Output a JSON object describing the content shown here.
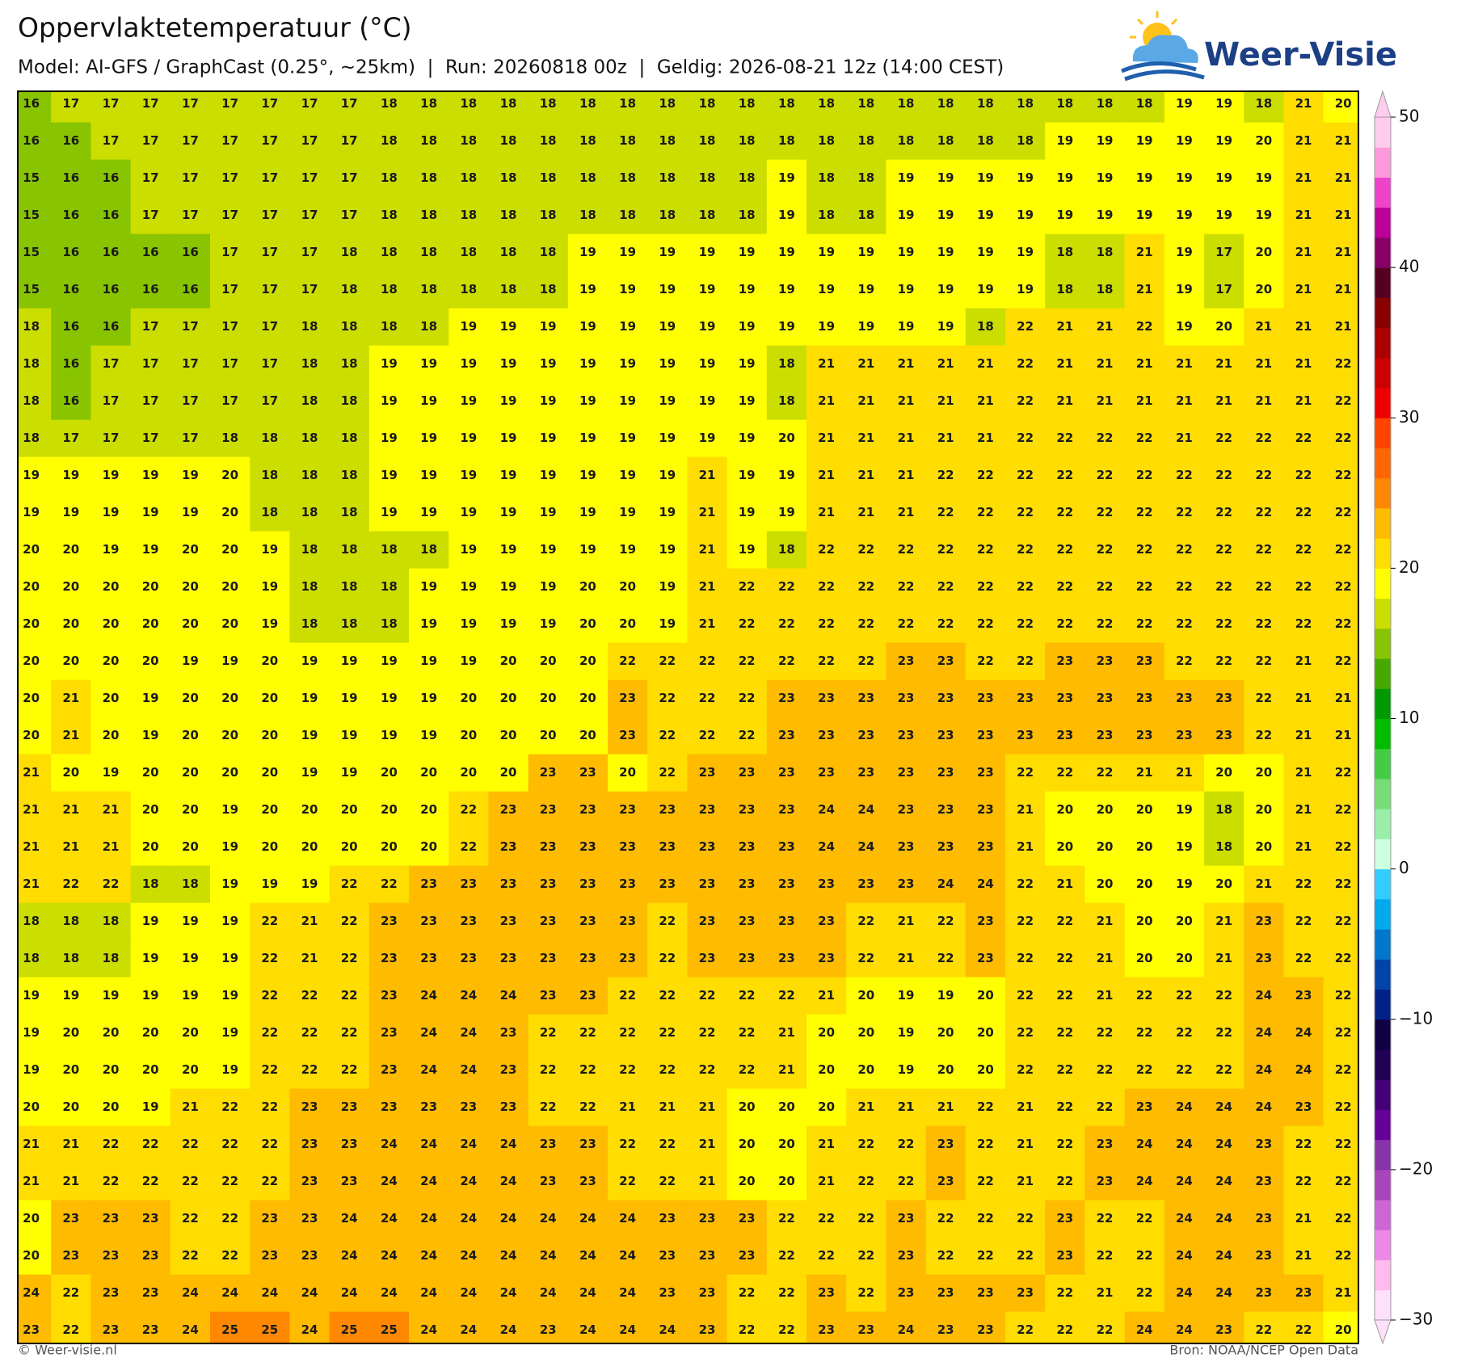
{
  "header": {
    "title": "Oppervlaktetemperatuur (°C)",
    "subtitle": "Model: AI-GFS / GraphCast (0.25°, ~25km)  |  Run: 20260818 00z  |  Geldig: 2026-08-21 12z (14:00 CEST)"
  },
  "logo": {
    "text": "Weer-Visie"
  },
  "map": {
    "values": [
      [
        16,
        17,
        17,
        17,
        17,
        17,
        17,
        17,
        17,
        18,
        18,
        18,
        18,
        18,
        18,
        18,
        18,
        18,
        18,
        18,
        18,
        18,
        18,
        18,
        18,
        18,
        18,
        18,
        18,
        19,
        19,
        18,
        21,
        20
      ],
      [
        16,
        16,
        17,
        17,
        17,
        17,
        17,
        17,
        17,
        18,
        18,
        18,
        18,
        18,
        18,
        18,
        18,
        18,
        18,
        18,
        18,
        18,
        18,
        18,
        18,
        18,
        19,
        19,
        19,
        19,
        19,
        20,
        21,
        21
      ],
      [
        15,
        16,
        16,
        17,
        17,
        17,
        17,
        17,
        17,
        18,
        18,
        18,
        18,
        18,
        18,
        18,
        18,
        18,
        18,
        19,
        18,
        18,
        19,
        19,
        19,
        19,
        19,
        19,
        19,
        19,
        19,
        19,
        21,
        21
      ],
      [
        15,
        16,
        16,
        17,
        17,
        17,
        17,
        17,
        17,
        18,
        18,
        18,
        18,
        18,
        18,
        18,
        18,
        18,
        18,
        19,
        18,
        18,
        19,
        19,
        19,
        19,
        19,
        19,
        19,
        19,
        19,
        19,
        21,
        21
      ],
      [
        15,
        16,
        16,
        16,
        16,
        17,
        17,
        17,
        18,
        18,
        18,
        18,
        18,
        18,
        19,
        19,
        19,
        19,
        19,
        19,
        19,
        19,
        19,
        19,
        19,
        19,
        18,
        18,
        21,
        19,
        17,
        20,
        21,
        21
      ],
      [
        15,
        16,
        16,
        16,
        16,
        17,
        17,
        17,
        18,
        18,
        18,
        18,
        18,
        18,
        19,
        19,
        19,
        19,
        19,
        19,
        19,
        19,
        19,
        19,
        19,
        19,
        18,
        18,
        21,
        19,
        17,
        20,
        21,
        21
      ],
      [
        18,
        16,
        16,
        17,
        17,
        17,
        17,
        18,
        18,
        18,
        18,
        19,
        19,
        19,
        19,
        19,
        19,
        19,
        19,
        19,
        19,
        19,
        19,
        19,
        18,
        22,
        21,
        21,
        22,
        19,
        20,
        21,
        21,
        21
      ],
      [
        18,
        16,
        17,
        17,
        17,
        17,
        17,
        18,
        18,
        19,
        19,
        19,
        19,
        19,
        19,
        19,
        19,
        19,
        19,
        18,
        21,
        21,
        21,
        21,
        21,
        22,
        21,
        21,
        21,
        21,
        21,
        21,
        21,
        22
      ],
      [
        18,
        16,
        17,
        17,
        17,
        17,
        17,
        18,
        18,
        19,
        19,
        19,
        19,
        19,
        19,
        19,
        19,
        19,
        19,
        18,
        21,
        21,
        21,
        21,
        21,
        22,
        21,
        21,
        21,
        21,
        21,
        21,
        21,
        22
      ],
      [
        18,
        17,
        17,
        17,
        17,
        18,
        18,
        18,
        18,
        19,
        19,
        19,
        19,
        19,
        19,
        19,
        19,
        19,
        19,
        20,
        21,
        21,
        21,
        21,
        21,
        22,
        22,
        22,
        22,
        21,
        22,
        22,
        22,
        22
      ],
      [
        19,
        19,
        19,
        19,
        19,
        20,
        18,
        18,
        18,
        19,
        19,
        19,
        19,
        19,
        19,
        19,
        19,
        21,
        19,
        19,
        21,
        21,
        21,
        22,
        22,
        22,
        22,
        22,
        22,
        22,
        22,
        22,
        22,
        22
      ],
      [
        19,
        19,
        19,
        19,
        19,
        20,
        18,
        18,
        18,
        19,
        19,
        19,
        19,
        19,
        19,
        19,
        19,
        21,
        19,
        19,
        21,
        21,
        21,
        22,
        22,
        22,
        22,
        22,
        22,
        22,
        22,
        22,
        22,
        22
      ],
      [
        20,
        20,
        19,
        19,
        20,
        20,
        19,
        18,
        18,
        18,
        18,
        19,
        19,
        19,
        19,
        19,
        19,
        21,
        19,
        18,
        22,
        22,
        22,
        22,
        22,
        22,
        22,
        22,
        22,
        22,
        22,
        22,
        22,
        22
      ],
      [
        20,
        20,
        20,
        20,
        20,
        20,
        19,
        18,
        18,
        18,
        19,
        19,
        19,
        19,
        20,
        20,
        19,
        21,
        22,
        22,
        22,
        22,
        22,
        22,
        22,
        22,
        22,
        22,
        22,
        22,
        22,
        22,
        22,
        22
      ],
      [
        20,
        20,
        20,
        20,
        20,
        20,
        19,
        18,
        18,
        18,
        19,
        19,
        19,
        19,
        20,
        20,
        19,
        21,
        22,
        22,
        22,
        22,
        22,
        22,
        22,
        22,
        22,
        22,
        22,
        22,
        22,
        22,
        22,
        22
      ],
      [
        20,
        20,
        20,
        20,
        19,
        19,
        20,
        19,
        19,
        19,
        19,
        19,
        20,
        20,
        20,
        22,
        22,
        22,
        22,
        22,
        22,
        22,
        23,
        23,
        22,
        22,
        23,
        23,
        23,
        22,
        22,
        22,
        21,
        22
      ],
      [
        20,
        21,
        20,
        19,
        20,
        20,
        20,
        19,
        19,
        19,
        19,
        20,
        20,
        20,
        20,
        23,
        22,
        22,
        22,
        23,
        23,
        23,
        23,
        23,
        23,
        23,
        23,
        23,
        23,
        23,
        23,
        22,
        21,
        21
      ],
      [
        20,
        21,
        20,
        19,
        20,
        20,
        20,
        19,
        19,
        19,
        19,
        20,
        20,
        20,
        20,
        23,
        22,
        22,
        22,
        23,
        23,
        23,
        23,
        23,
        23,
        23,
        23,
        23,
        23,
        23,
        23,
        22,
        21,
        21
      ],
      [
        21,
        20,
        19,
        20,
        20,
        20,
        20,
        19,
        19,
        20,
        20,
        20,
        20,
        23,
        23,
        20,
        22,
        23,
        23,
        23,
        23,
        23,
        23,
        23,
        23,
        22,
        22,
        22,
        21,
        21,
        20,
        20,
        21,
        22
      ],
      [
        21,
        21,
        21,
        20,
        20,
        19,
        20,
        20,
        20,
        20,
        20,
        22,
        23,
        23,
        23,
        23,
        23,
        23,
        23,
        23,
        24,
        24,
        23,
        23,
        23,
        21,
        20,
        20,
        20,
        19,
        18,
        20,
        21,
        22
      ],
      [
        21,
        21,
        21,
        20,
        20,
        19,
        20,
        20,
        20,
        20,
        20,
        22,
        23,
        23,
        23,
        23,
        23,
        23,
        23,
        23,
        24,
        24,
        23,
        23,
        23,
        21,
        20,
        20,
        20,
        19,
        18,
        20,
        21,
        22
      ],
      [
        21,
        22,
        22,
        18,
        18,
        19,
        19,
        19,
        22,
        22,
        23,
        23,
        23,
        23,
        23,
        23,
        23,
        23,
        23,
        23,
        23,
        23,
        23,
        24,
        24,
        22,
        21,
        20,
        20,
        19,
        20,
        21,
        22,
        22
      ],
      [
        18,
        18,
        18,
        19,
        19,
        19,
        22,
        21,
        22,
        23,
        23,
        23,
        23,
        23,
        23,
        23,
        22,
        23,
        23,
        23,
        23,
        22,
        21,
        22,
        23,
        22,
        22,
        21,
        20,
        20,
        21,
        23,
        22,
        22
      ],
      [
        18,
        18,
        18,
        19,
        19,
        19,
        22,
        21,
        22,
        23,
        23,
        23,
        23,
        23,
        23,
        23,
        22,
        23,
        23,
        23,
        23,
        22,
        21,
        22,
        23,
        22,
        22,
        21,
        20,
        20,
        21,
        23,
        22,
        22
      ],
      [
        19,
        19,
        19,
        19,
        19,
        19,
        22,
        22,
        22,
        23,
        24,
        24,
        24,
        23,
        23,
        22,
        22,
        22,
        22,
        22,
        21,
        20,
        19,
        19,
        20,
        22,
        22,
        21,
        22,
        22,
        22,
        24,
        23,
        22
      ],
      [
        19,
        20,
        20,
        20,
        20,
        19,
        22,
        22,
        22,
        23,
        24,
        24,
        23,
        22,
        22,
        22,
        22,
        22,
        22,
        21,
        20,
        20,
        19,
        20,
        20,
        22,
        22,
        22,
        22,
        22,
        22,
        24,
        24,
        22
      ],
      [
        19,
        20,
        20,
        20,
        20,
        19,
        22,
        22,
        22,
        23,
        24,
        24,
        23,
        22,
        22,
        22,
        22,
        22,
        22,
        21,
        20,
        20,
        19,
        20,
        20,
        22,
        22,
        22,
        22,
        22,
        22,
        24,
        24,
        22
      ],
      [
        20,
        20,
        20,
        19,
        21,
        22,
        22,
        23,
        23,
        23,
        23,
        23,
        23,
        22,
        22,
        21,
        21,
        21,
        20,
        20,
        20,
        21,
        21,
        21,
        22,
        21,
        22,
        22,
        23,
        24,
        24,
        24,
        23,
        22
      ],
      [
        21,
        21,
        22,
        22,
        22,
        22,
        22,
        23,
        23,
        24,
        24,
        24,
        24,
        23,
        23,
        22,
        22,
        21,
        20,
        20,
        21,
        22,
        22,
        23,
        22,
        21,
        22,
        23,
        24,
        24,
        24,
        23,
        22,
        22
      ],
      [
        21,
        21,
        22,
        22,
        22,
        22,
        22,
        23,
        23,
        24,
        24,
        24,
        24,
        23,
        23,
        22,
        22,
        21,
        20,
        20,
        21,
        22,
        22,
        23,
        22,
        21,
        22,
        23,
        24,
        24,
        24,
        23,
        22,
        22
      ],
      [
        20,
        23,
        23,
        23,
        22,
        22,
        23,
        23,
        24,
        24,
        24,
        24,
        24,
        24,
        24,
        24,
        23,
        23,
        23,
        22,
        22,
        22,
        23,
        22,
        22,
        22,
        23,
        22,
        22,
        24,
        24,
        23,
        21,
        22
      ],
      [
        20,
        23,
        23,
        23,
        22,
        22,
        23,
        23,
        24,
        24,
        24,
        24,
        24,
        24,
        24,
        24,
        23,
        23,
        23,
        22,
        22,
        22,
        23,
        22,
        22,
        22,
        23,
        22,
        22,
        24,
        24,
        23,
        21,
        22
      ],
      [
        24,
        22,
        23,
        23,
        24,
        24,
        24,
        24,
        24,
        24,
        24,
        24,
        24,
        24,
        24,
        24,
        23,
        23,
        22,
        22,
        23,
        22,
        23,
        23,
        23,
        23,
        22,
        21,
        22,
        24,
        24,
        23,
        23,
        21
      ],
      [
        23,
        22,
        23,
        23,
        24,
        25,
        25,
        24,
        25,
        25,
        24,
        24,
        24,
        23,
        24,
        24,
        24,
        23,
        22,
        22,
        23,
        23,
        24,
        23,
        23,
        22,
        22,
        22,
        24,
        24,
        23,
        22,
        22,
        20
      ]
    ]
  },
  "colorbar": {
    "lim": [
      -30,
      50
    ],
    "ticks": [
      50,
      40,
      30,
      20,
      10,
      0,
      {
        "value": -10,
        "label": "−10"
      },
      {
        "value": -20,
        "label": "−20"
      },
      {
        "value": -30,
        "label": "−30"
      }
    ],
    "colors": [
      "#ffe0fa",
      "#ffbbee",
      "#ee88e8",
      "#cc66d6",
      "#aa44bb",
      "#8833aa",
      "#660099",
      "#440077",
      "#220055",
      "#110044",
      "#002288",
      "#0044aa",
      "#0077cc",
      "#00aaee",
      "#33ccff",
      "#ccffdd",
      "#99eeaa",
      "#77dd77",
      "#44cc44",
      "#00bb00",
      "#009900",
      "#44aa00",
      "#88c400",
      "#ccdd00",
      "#ffff00",
      "#ffdd00",
      "#ffbb00",
      "#ff8800",
      "#ff6600",
      "#ff4400",
      "#ee0000",
      "#cc0000",
      "#aa0000",
      "#880000",
      "#550022",
      "#880066",
      "#bb0099",
      "#ee44cc",
      "#ff99dd",
      "#ffccee"
    ]
  },
  "footer": {
    "left": "© Weer-visie.nl",
    "right": "Bron: NOAA/NCEP Open Data"
  }
}
